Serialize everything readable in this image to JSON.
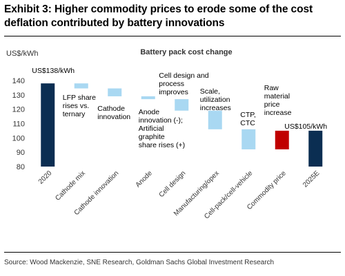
{
  "header": {
    "title": "Exhibit 3: Higher commodity prices to erode some of the cost deflation contributed by battery innovations"
  },
  "unit_label": "US$/kWh",
  "source": "Source: Wood Mackenzie, SNE Research, Goldman Sachs Global Investment Research",
  "chart_data": {
    "type": "bar",
    "subtype": "waterfall",
    "title": "Battery pack cost change",
    "ylabel": "US$/kWh",
    "xlabel": "",
    "ylim": [
      80,
      140
    ],
    "yticks": [
      80,
      90,
      100,
      110,
      120,
      130,
      140
    ],
    "grid": false,
    "categories": [
      "2020",
      "Cathode mix",
      "Cathode innovation",
      "Anode",
      "Cell design",
      "Manufacturing/opex",
      "Cell-pack/cell-vehicle",
      "Commodity price",
      "2025E"
    ],
    "bars": [
      {
        "category": "2020",
        "kind": "total",
        "start": 0,
        "end": 138,
        "color": "#0b2e52"
      },
      {
        "category": "Cathode mix",
        "kind": "decrease",
        "start": 138,
        "end": 134.5,
        "color": "#a9d8f2"
      },
      {
        "category": "Cathode innovation",
        "kind": "decrease",
        "start": 134.5,
        "end": 129,
        "color": "#a9d8f2"
      },
      {
        "category": "Anode",
        "kind": "decrease",
        "start": 129,
        "end": 127,
        "color": "#a9d8f2"
      },
      {
        "category": "Cell design",
        "kind": "decrease",
        "start": 127,
        "end": 119,
        "color": "#a9d8f2"
      },
      {
        "category": "Manufacturing/opex",
        "kind": "decrease",
        "start": 119,
        "end": 106,
        "color": "#a9d8f2"
      },
      {
        "category": "Cell-pack/cell-vehicle",
        "kind": "decrease",
        "start": 106,
        "end": 92,
        "color": "#a9d8f2"
      },
      {
        "category": "Commodity price",
        "kind": "increase",
        "start": 92,
        "end": 105,
        "color": "#c00000"
      },
      {
        "category": "2025E",
        "kind": "total",
        "start": 0,
        "end": 105,
        "color": "#0b2e52"
      }
    ],
    "annotations": [
      {
        "category": "2020",
        "lines": [
          "US$138/kWh"
        ]
      },
      {
        "category": "Cathode mix",
        "lines": [
          "LFP share",
          "rises vs.",
          "ternary"
        ]
      },
      {
        "category": "Cathode innovation",
        "lines": [
          "Cathode",
          "innovation"
        ]
      },
      {
        "category": "Anode",
        "lines": [
          "Anode",
          "innovation (-);",
          "Artificial",
          "graphite",
          "share rises (+)"
        ]
      },
      {
        "category": "Cell design",
        "lines": [
          "Cell design and",
          "process",
          "improves"
        ]
      },
      {
        "category": "Manufacturing/opex",
        "lines": [
          "Scale,",
          "utilization",
          "increases"
        ]
      },
      {
        "category": "Cell-pack/cell-vehicle",
        "lines": [
          "CTP,",
          "CTC"
        ]
      },
      {
        "category": "Commodity price",
        "lines": [
          "Raw",
          "material",
          "price",
          "increase"
        ]
      },
      {
        "category": "2025E",
        "lines": [
          "US$105/kWh"
        ]
      }
    ]
  }
}
